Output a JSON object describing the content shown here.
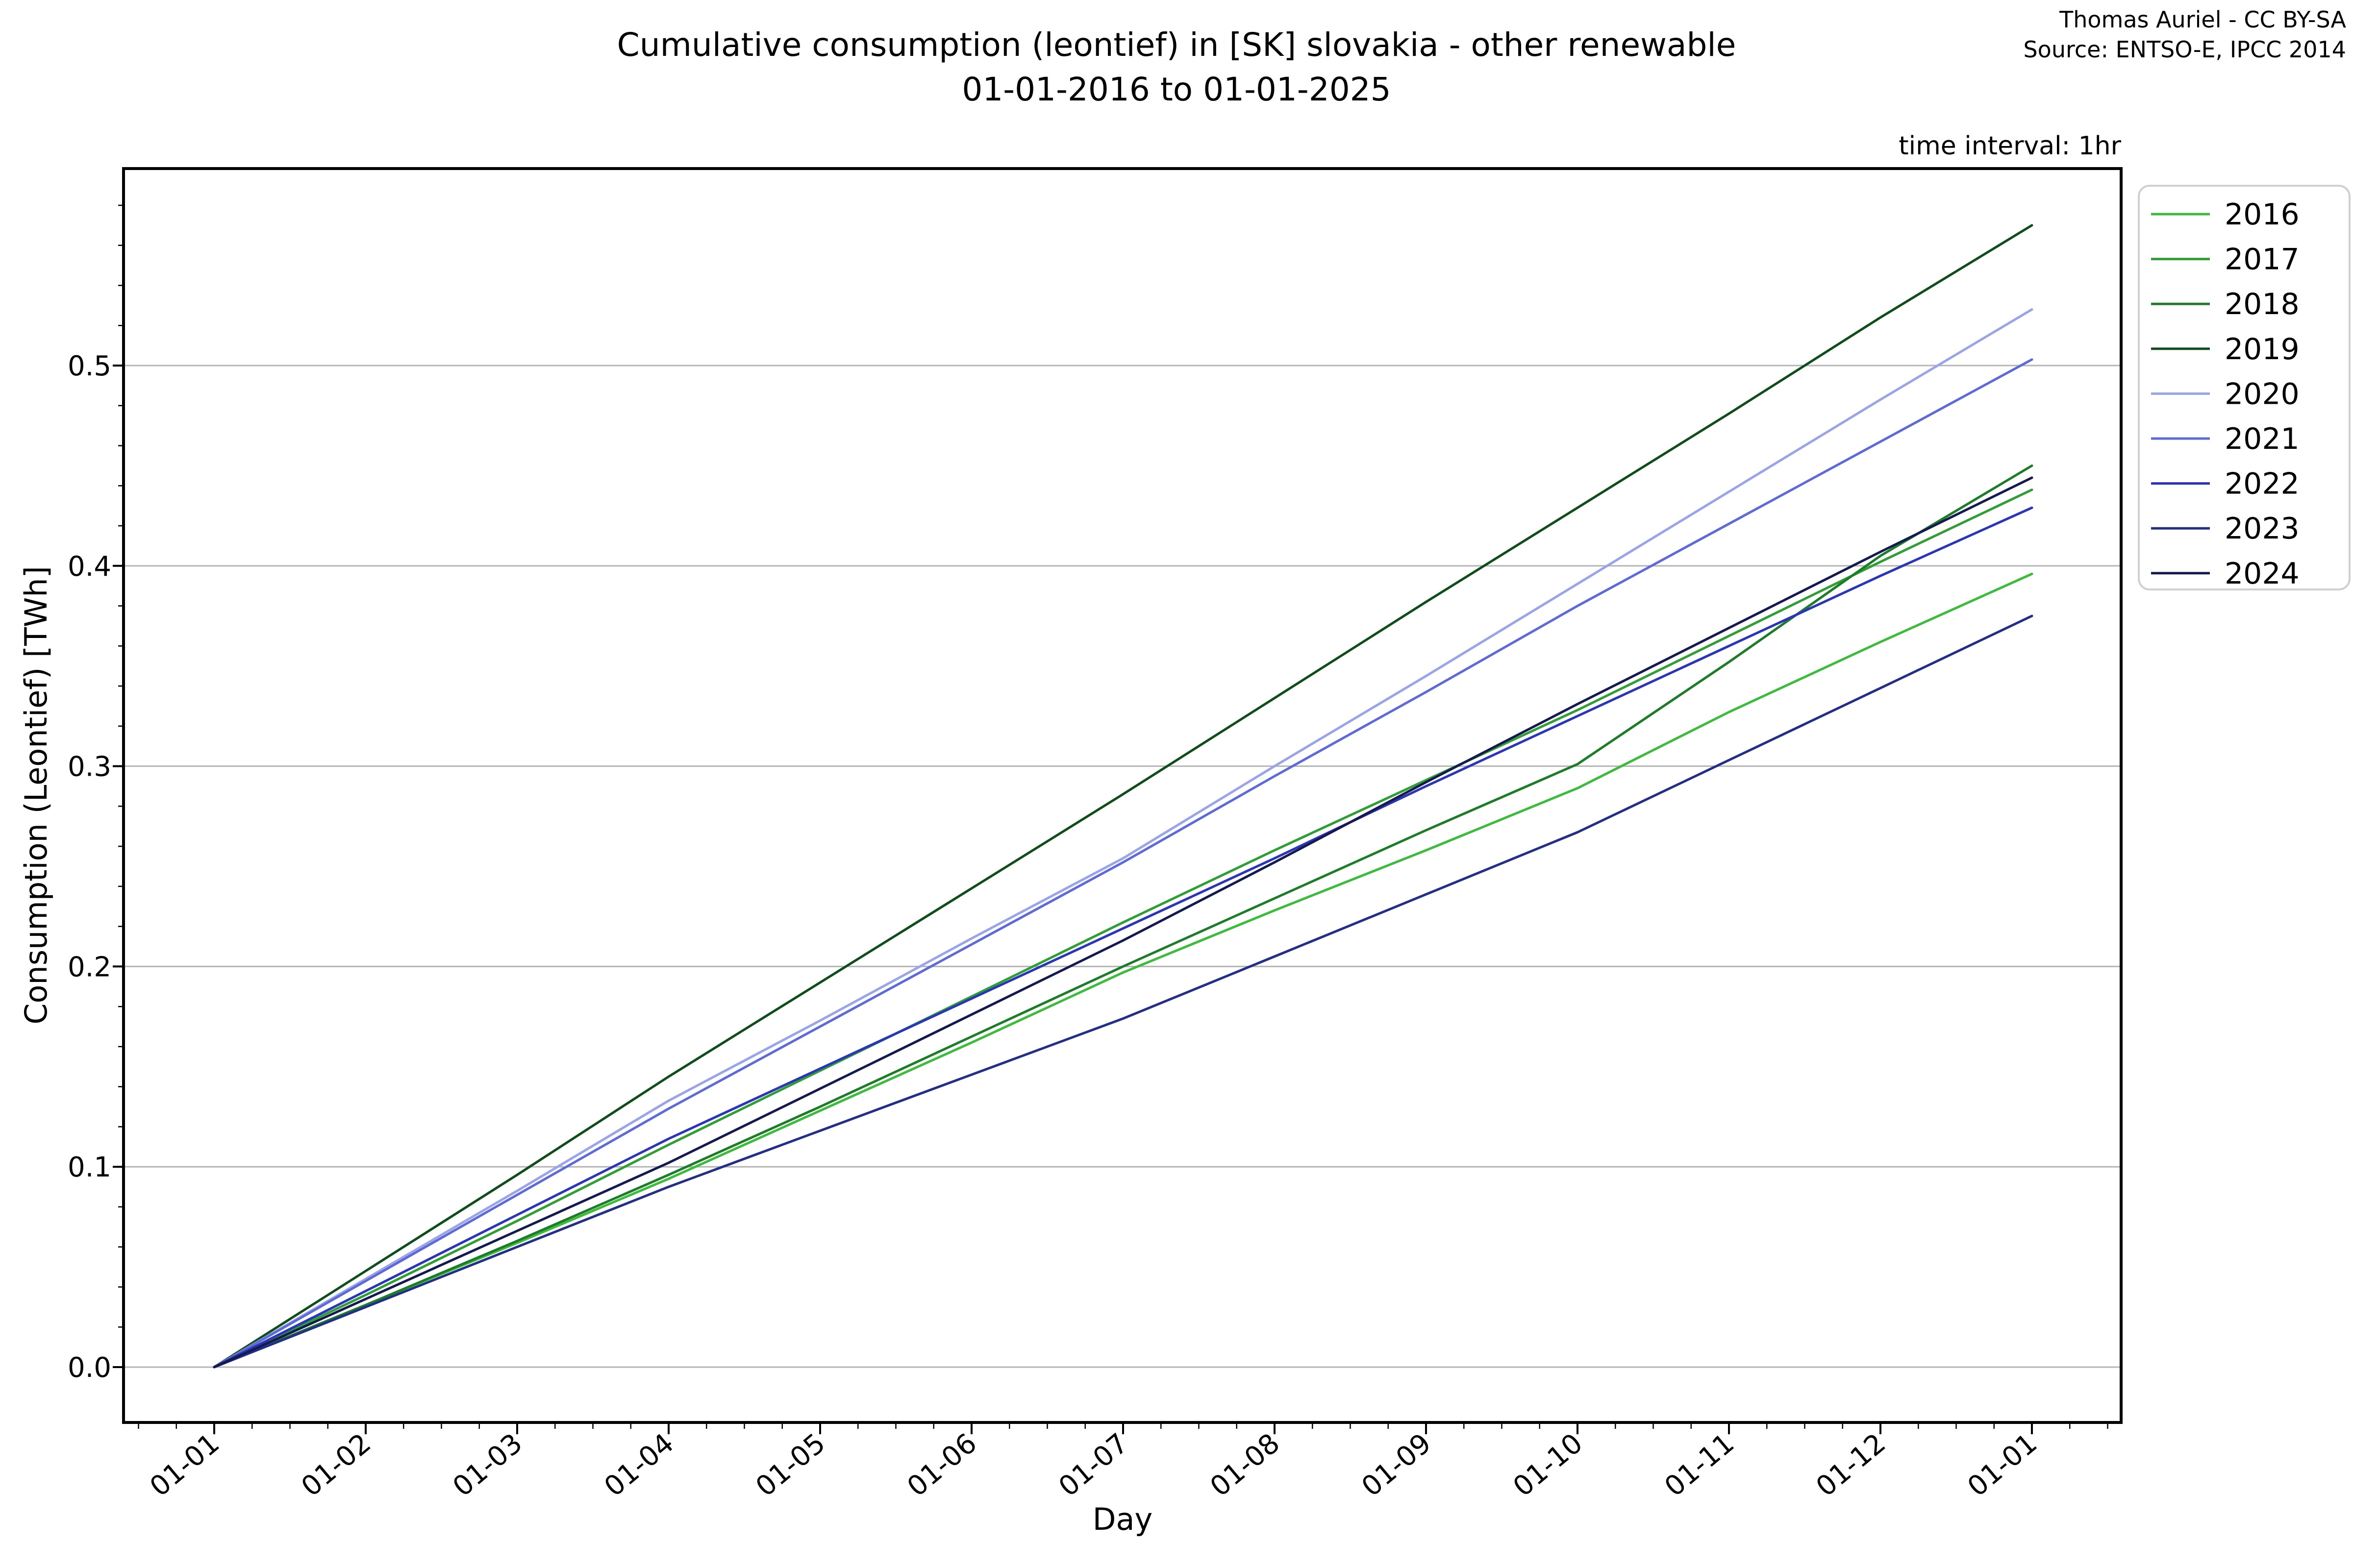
{
  "title": {
    "line1": "Cumulative consumption (leontief) in [SK] slovakia - other renewable",
    "line2": "01-01-2016 to 01-01-2025"
  },
  "attribution": {
    "line1": "Thomas Auriel - CC BY-SA",
    "line2": "Source: ENTSO-E, IPCC 2014"
  },
  "annotation": "time interval: 1hr",
  "chart_data": {
    "type": "line",
    "title": "Cumulative consumption (leontief) in [SK] slovakia - other renewable 01-01-2016 to 01-01-2025",
    "xlabel": "Day",
    "ylabel": "Consumption (Leontief) [TWh]",
    "grid": true,
    "legend_position": "upper right, outside axes",
    "x_ticklabels": [
      "01-01",
      "01-02",
      "01-03",
      "01-04",
      "01-05",
      "01-06",
      "01-07",
      "01-08",
      "01-09",
      "01-10",
      "01-11",
      "01-12",
      "01-01"
    ],
    "y_ticks": [
      0.0,
      0.1,
      0.2,
      0.3,
      0.4,
      0.5
    ],
    "ylim": [
      -0.028,
      0.598
    ],
    "grid_color": "#b5b5b5",
    "categories": [
      "01-01",
      "01-02",
      "01-03",
      "01-04",
      "01-05",
      "01-06",
      "01-07",
      "01-08",
      "01-09",
      "01-10",
      "01-11",
      "01-12",
      "01-01"
    ],
    "series": [
      {
        "name": "2016",
        "color": "#3dbb3d",
        "values": [
          0,
          0.031,
          0.062,
          0.094,
          0.128,
          0.162,
          0.197,
          0.228,
          0.258,
          0.289,
          0.327,
          0.362,
          0.396
        ]
      },
      {
        "name": "2017",
        "color": "#2f9e35",
        "values": [
          0,
          0.036,
          0.073,
          0.111,
          0.148,
          0.185,
          0.222,
          0.258,
          0.293,
          0.328,
          0.365,
          0.402,
          0.438
        ]
      },
      {
        "name": "2018",
        "color": "#1d7c28",
        "values": [
          0,
          0.031,
          0.063,
          0.096,
          0.13,
          0.165,
          0.2,
          0.234,
          0.268,
          0.301,
          0.352,
          0.405,
          0.45
        ]
      },
      {
        "name": "2019",
        "color": "#0f4d1a",
        "values": [
          0,
          0.048,
          0.096,
          0.145,
          0.192,
          0.239,
          0.286,
          0.334,
          0.382,
          0.429,
          0.476,
          0.524,
          0.57
        ]
      },
      {
        "name": "2020",
        "color": "#9aa4e8",
        "values": [
          0,
          0.044,
          0.088,
          0.133,
          0.173,
          0.214,
          0.254,
          0.3,
          0.345,
          0.391,
          0.437,
          0.483,
          0.528
        ]
      },
      {
        "name": "2021",
        "color": "#5e6ad8",
        "values": [
          0,
          0.043,
          0.086,
          0.129,
          0.17,
          0.211,
          0.252,
          0.295,
          0.337,
          0.38,
          0.421,
          0.462,
          0.503
        ]
      },
      {
        "name": "2022",
        "color": "#2b35b8",
        "values": [
          0,
          0.038,
          0.076,
          0.114,
          0.149,
          0.184,
          0.219,
          0.254,
          0.29,
          0.325,
          0.36,
          0.395,
          0.429
        ]
      },
      {
        "name": "2023",
        "color": "#232e86",
        "values": [
          0,
          0.03,
          0.06,
          0.09,
          0.118,
          0.146,
          0.174,
          0.205,
          0.236,
          0.267,
          0.303,
          0.339,
          0.375
        ]
      },
      {
        "name": "2024",
        "color": "#141a4f",
        "values": [
          0,
          0.034,
          0.068,
          0.102,
          0.139,
          0.176,
          0.213,
          0.252,
          0.292,
          0.331,
          0.369,
          0.407,
          0.444
        ]
      }
    ]
  }
}
